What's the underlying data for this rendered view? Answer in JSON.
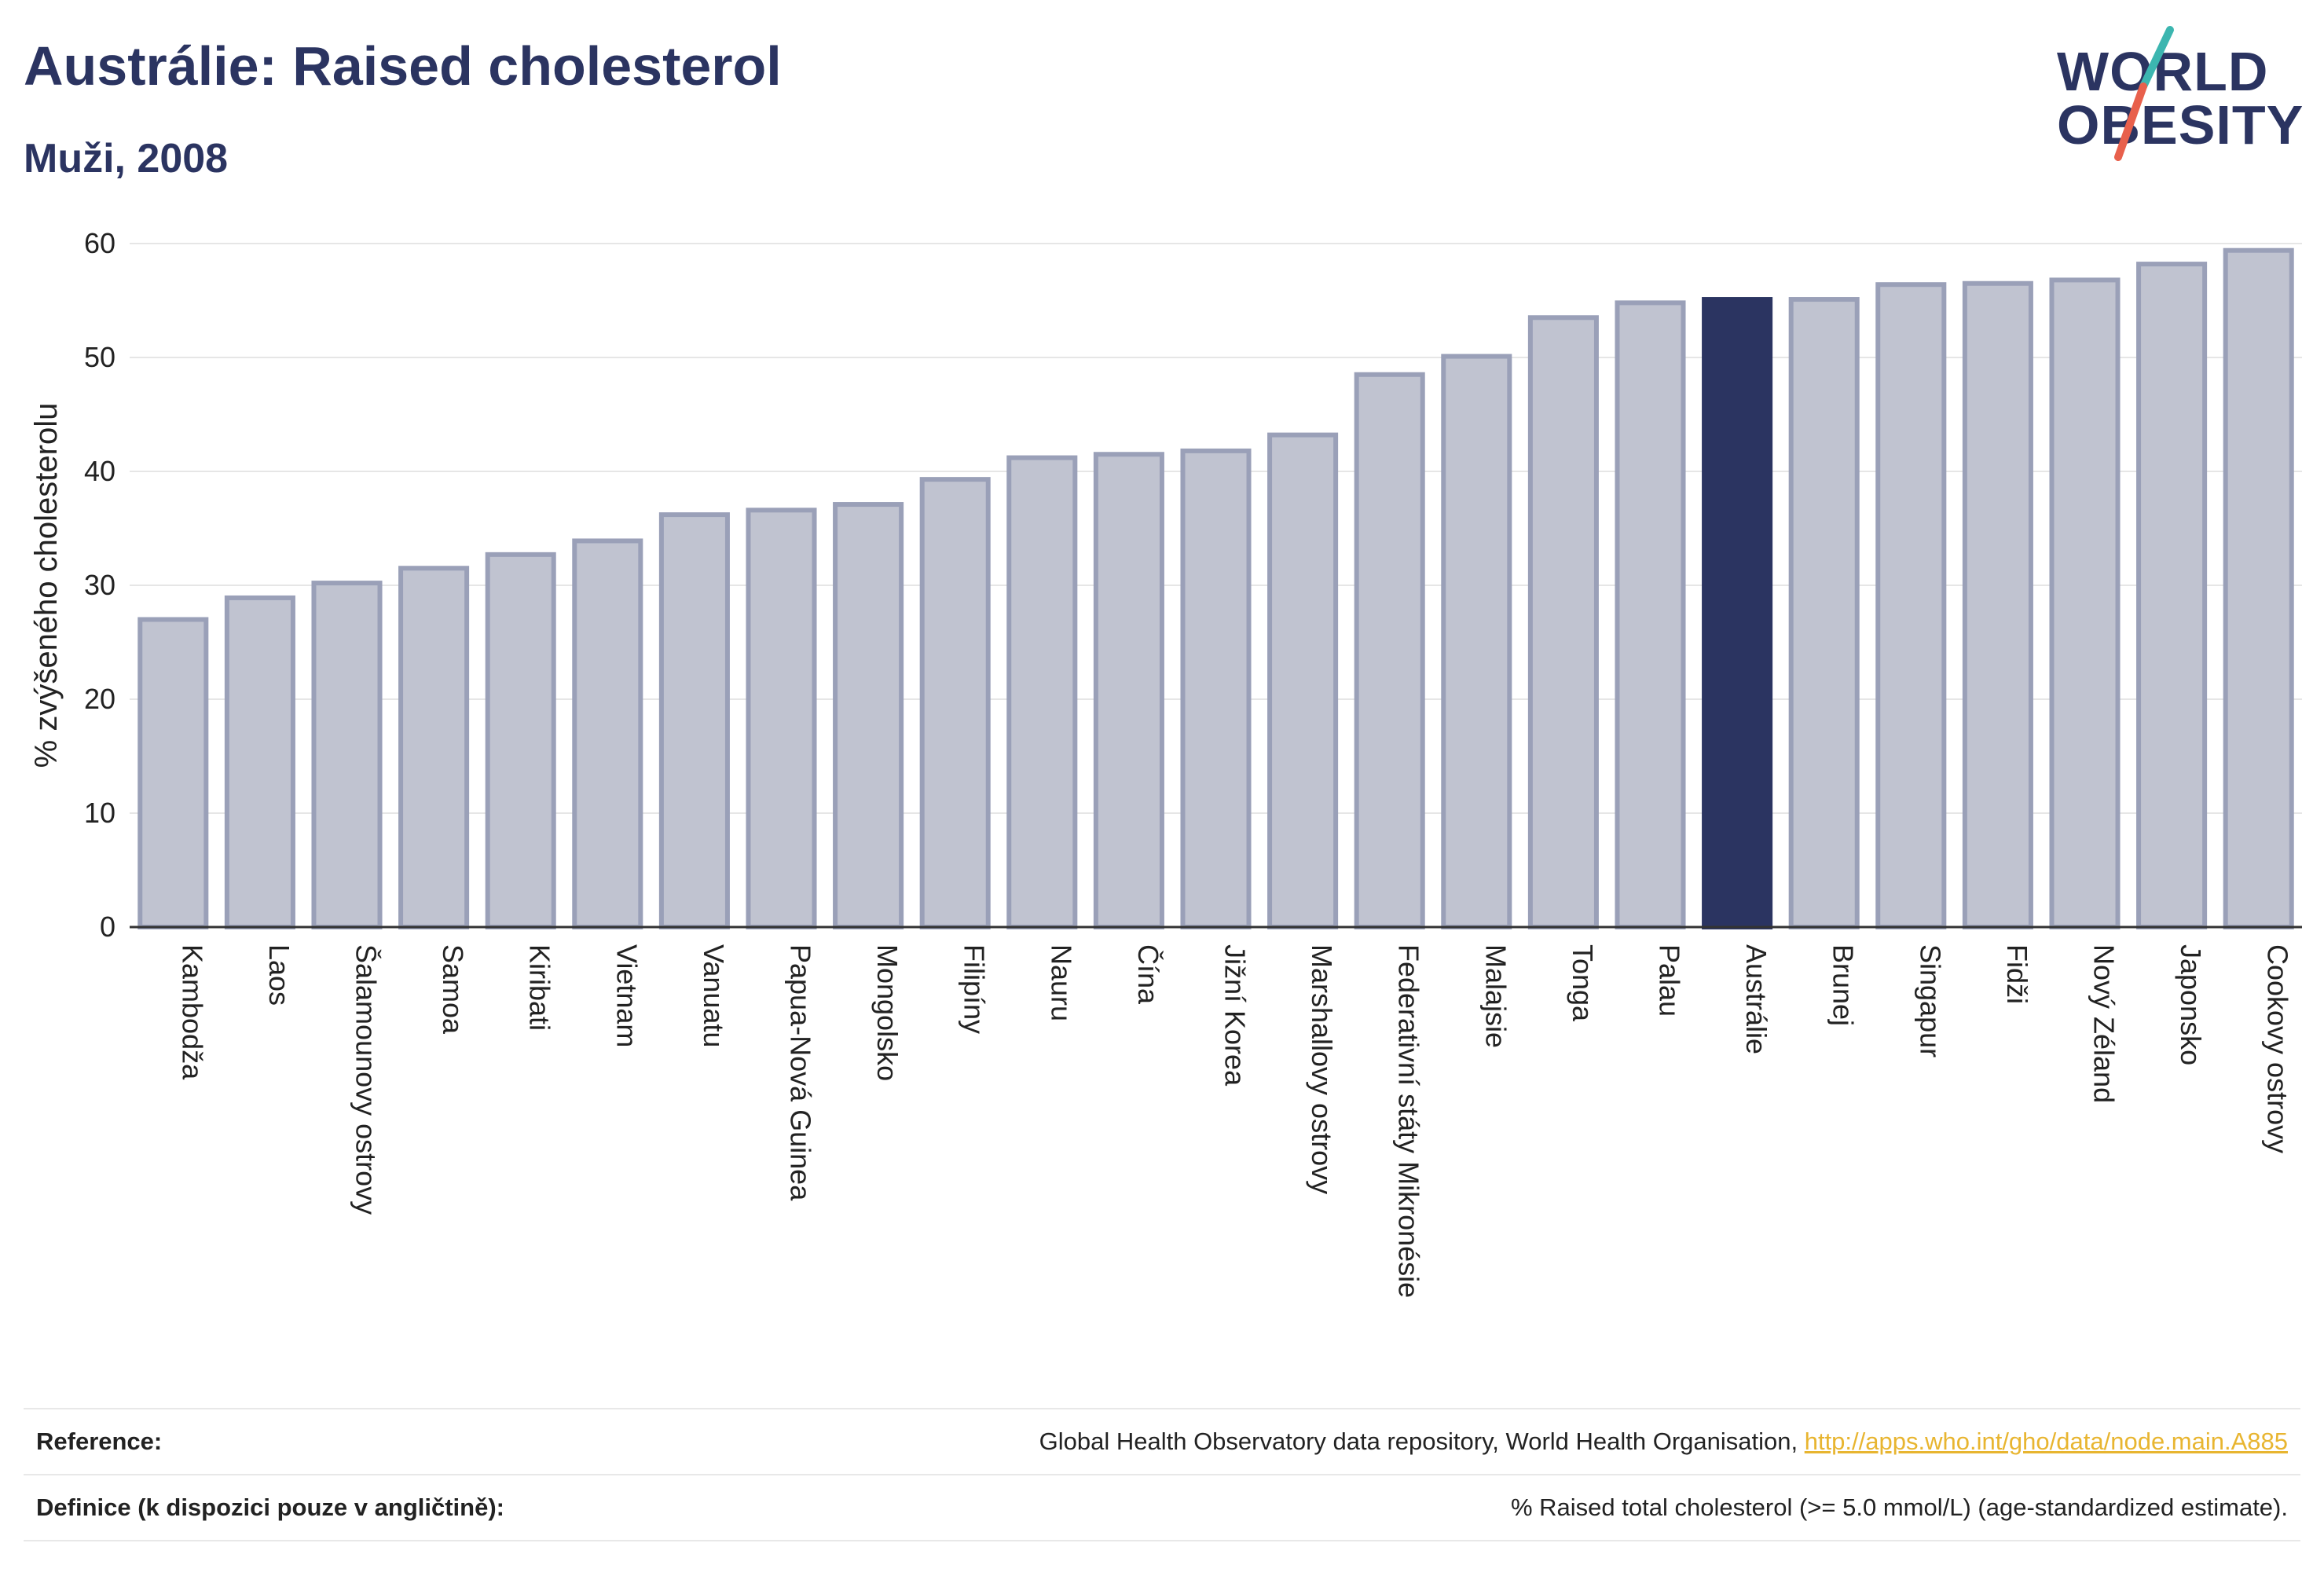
{
  "header": {
    "title": "Austrálie: Raised cholesterol",
    "subtitle": "Muži, 2008"
  },
  "logo": {
    "line1": "WORLD",
    "line2": "OBESITY",
    "slash_color_top": "#3cb6b0",
    "slash_color_bottom": "#e8604c"
  },
  "colors": {
    "bar_default": "#c0c3d0",
    "bar_border": "#9aa0b8",
    "bar_highlight": "#2b3461",
    "text_dark": "#2b3461",
    "link": "#e8b530"
  },
  "chart_data": {
    "type": "bar",
    "ylabel": "% zvýšeného cholesterolu",
    "ylim": [
      0,
      60
    ],
    "yticks": [
      0,
      10,
      20,
      30,
      40,
      50,
      60
    ],
    "grid": true,
    "highlight": "Austrálie",
    "categories": [
      "Kambodža",
      "Laos",
      "Šalamounovy ostrovy",
      "Samoa",
      "Kiribati",
      "Vietnam",
      "Vanuatu",
      "Papua-Nová Guinea",
      "Mongolsko",
      "Filipíny",
      "Nauru",
      "Čína",
      "Jižní Korea",
      "Marshallovy ostrovy",
      "Federativní státy Mikronésie",
      "Malajsie",
      "Tonga",
      "Palau",
      "Austrálie",
      "Brunej",
      "Singapur",
      "Fidži",
      "Nový Zéland",
      "Japonsko",
      "Cookovy ostrovy"
    ],
    "values": [
      27.0,
      28.9,
      30.2,
      31.5,
      32.7,
      33.9,
      36.2,
      36.6,
      37.1,
      39.3,
      41.2,
      41.5,
      41.8,
      43.2,
      48.5,
      50.1,
      53.5,
      54.8,
      55.1,
      55.1,
      56.4,
      56.5,
      56.8,
      58.2,
      59.4
    ]
  },
  "footer": {
    "reference_label": "Reference:",
    "reference_text": "Global Health Observatory data repository, World Health Organisation, ",
    "reference_link": "http://apps.who.int/gho/data/node.main.A885",
    "definition_label": "Definice (k dispozici pouze v angličtině):",
    "definition_text": "% Raised total cholesterol (>= 5.0 mmol/L) (age-standardized estimate)."
  }
}
